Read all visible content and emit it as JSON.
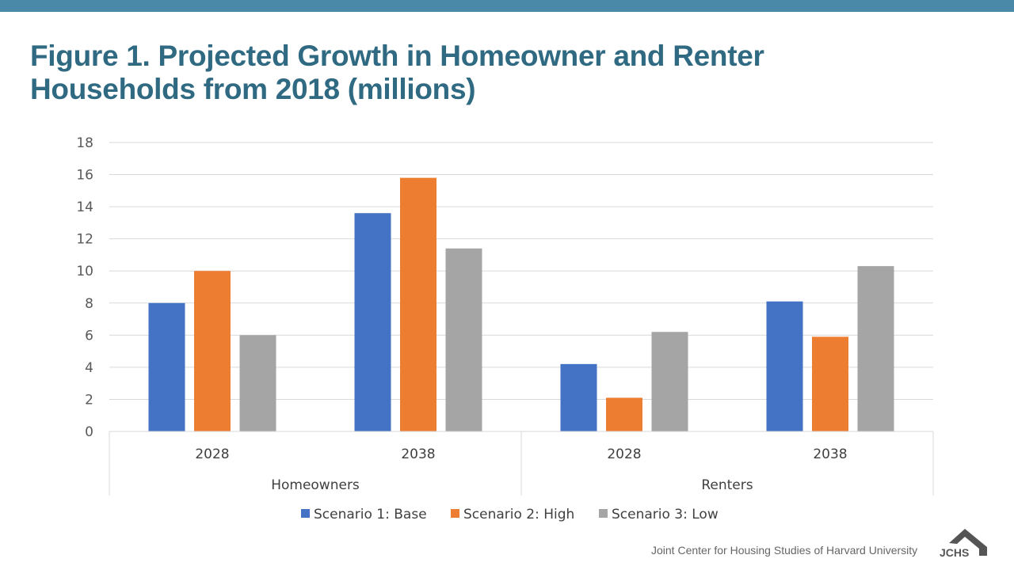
{
  "title": "Figure 1. Projected Growth in Homeowner and Renter Households from 2018 (millions)",
  "chart_data": {
    "type": "bar",
    "groups": [
      {
        "label": "Homeowners",
        "categories": [
          "2028",
          "2038"
        ]
      },
      {
        "label": "Renters",
        "categories": [
          "2028",
          "2038"
        ]
      }
    ],
    "series": [
      {
        "name": "Scenario 1: Base",
        "color": "#4472c4",
        "values": [
          8.0,
          13.6,
          4.2,
          8.1
        ]
      },
      {
        "name": "Scenario 2: High",
        "color": "#ed7d31",
        "values": [
          10.0,
          15.8,
          2.1,
          5.9
        ]
      },
      {
        "name": "Scenario 3: Low",
        "color": "#a5a5a5",
        "values": [
          6.0,
          11.4,
          6.2,
          10.3
        ]
      }
    ],
    "ylim": [
      0,
      18
    ],
    "yticks": [
      "0",
      "2",
      "4",
      "6",
      "8",
      "10",
      "12",
      "14",
      "16",
      "18"
    ],
    "grid": true,
    "legend": "bottom",
    "xlabel": "",
    "ylabel": ""
  },
  "footer": {
    "source": "Joint Center for Housing Studies of Harvard University",
    "logo_text": "JCHS"
  }
}
